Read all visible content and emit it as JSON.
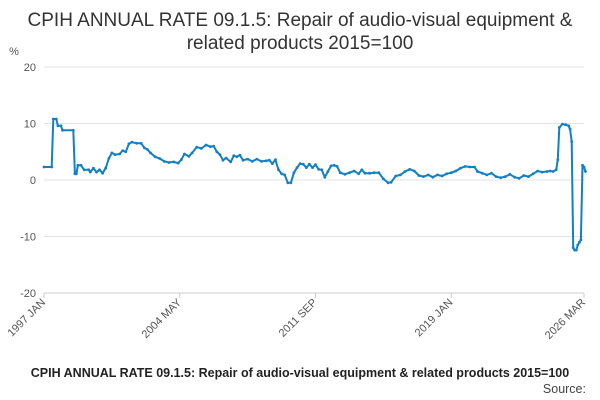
{
  "chart_data": {
    "type": "line",
    "title": "CPIH ANNUAL RATE 09.1.5: Repair of audio-visual equipment & related products 2015=100",
    "ylabel": "%",
    "xlabel": "",
    "ylim": [
      -20,
      20
    ],
    "yticks": [
      -20,
      -10,
      0,
      10,
      20
    ],
    "x_range": [
      "1997 JAN",
      "2026 MAR"
    ],
    "xticks": [
      "1997 JAN",
      "2004 MAY",
      "2011 SEP",
      "2019 JAN",
      "2026 MAR"
    ],
    "grid": true,
    "color": "#1380C4",
    "series": [
      {
        "name": "CPIH ANNUAL RATE 09.1.5",
        "points": [
          [
            "1997-01",
            2.3
          ],
          [
            "1997-06",
            2.3
          ],
          [
            "1997-07",
            10.8
          ],
          [
            "1997-09",
            10.8
          ],
          [
            "1997-10",
            9.6
          ],
          [
            "1997-12",
            9.6
          ],
          [
            "1998-01",
            8.8
          ],
          [
            "1998-08",
            8.8
          ],
          [
            "1998-09",
            1.1
          ],
          [
            "1998-10",
            1.1
          ],
          [
            "1998-11",
            2.6
          ],
          [
            "1999-01",
            2.6
          ],
          [
            "1999-03",
            1.8
          ],
          [
            "1999-06",
            1.8
          ],
          [
            "1999-07",
            1.4
          ],
          [
            "1999-09",
            2.1
          ],
          [
            "1999-11",
            1.4
          ],
          [
            "2000-01",
            1.8
          ],
          [
            "2000-03",
            1.2
          ],
          [
            "2000-05",
            2.1
          ],
          [
            "2000-07",
            3.8
          ],
          [
            "2000-09",
            4.8
          ],
          [
            "2000-11",
            4.5
          ],
          [
            "2001-02",
            4.6
          ],
          [
            "2001-04",
            5.2
          ],
          [
            "2001-06",
            5.0
          ],
          [
            "2001-08",
            6.4
          ],
          [
            "2001-10",
            6.7
          ],
          [
            "2002-01",
            6.5
          ],
          [
            "2002-04",
            6.5
          ],
          [
            "2002-06",
            5.7
          ],
          [
            "2002-08",
            5.4
          ],
          [
            "2002-10",
            4.8
          ],
          [
            "2003-01",
            4.1
          ],
          [
            "2003-04",
            3.8
          ],
          [
            "2003-07",
            3.3
          ],
          [
            "2003-10",
            3.1
          ],
          [
            "2004-01",
            3.2
          ],
          [
            "2004-04",
            3.0
          ],
          [
            "2004-06",
            3.6
          ],
          [
            "2004-08",
            4.6
          ],
          [
            "2004-11",
            4.2
          ],
          [
            "2005-01",
            4.8
          ],
          [
            "2005-04",
            5.8
          ],
          [
            "2005-07",
            5.6
          ],
          [
            "2005-10",
            6.2
          ],
          [
            "2006-01",
            5.9
          ],
          [
            "2006-03",
            6.0
          ],
          [
            "2006-05",
            5.0
          ],
          [
            "2006-07",
            4.5
          ],
          [
            "2006-09",
            3.5
          ],
          [
            "2006-11",
            3.9
          ],
          [
            "2007-02",
            3.2
          ],
          [
            "2007-04",
            4.3
          ],
          [
            "2007-06",
            4.1
          ],
          [
            "2007-08",
            4.4
          ],
          [
            "2007-10",
            3.5
          ],
          [
            "2008-01",
            3.7
          ],
          [
            "2008-04",
            3.3
          ],
          [
            "2008-07",
            3.7
          ],
          [
            "2008-10",
            3.3
          ],
          [
            "2009-01",
            3.4
          ],
          [
            "2009-03",
            3.5
          ],
          [
            "2009-05",
            2.9
          ],
          [
            "2009-07",
            3.6
          ],
          [
            "2009-09",
            1.8
          ],
          [
            "2009-11",
            1.1
          ],
          [
            "2010-01",
            0.9
          ],
          [
            "2010-03",
            -0.5
          ],
          [
            "2010-05",
            -0.5
          ],
          [
            "2010-07",
            1.3
          ],
          [
            "2010-09",
            2.2
          ],
          [
            "2010-11",
            2.9
          ],
          [
            "2011-01",
            2.8
          ],
          [
            "2011-03",
            2.2
          ],
          [
            "2011-05",
            2.8
          ],
          [
            "2011-07",
            2.2
          ],
          [
            "2011-09",
            2.7
          ],
          [
            "2011-11",
            1.9
          ],
          [
            "2012-01",
            1.8
          ],
          [
            "2012-03",
            0.5
          ],
          [
            "2012-05",
            1.5
          ],
          [
            "2012-07",
            2.5
          ],
          [
            "2012-09",
            2.6
          ],
          [
            "2012-11",
            2.4
          ],
          [
            "2013-01",
            1.3
          ],
          [
            "2013-04",
            1.0
          ],
          [
            "2013-07",
            1.3
          ],
          [
            "2013-10",
            1.6
          ],
          [
            "2014-01",
            1.1
          ],
          [
            "2014-03",
            1.8
          ],
          [
            "2014-05",
            1.2
          ],
          [
            "2014-08",
            1.2
          ],
          [
            "2014-11",
            1.3
          ],
          [
            "2015-02",
            1.3
          ],
          [
            "2015-05",
            0.2
          ],
          [
            "2015-08",
            -0.5
          ],
          [
            "2015-10",
            -0.4
          ],
          [
            "2016-01",
            0.7
          ],
          [
            "2016-04",
            0.9
          ],
          [
            "2016-07",
            1.5
          ],
          [
            "2016-10",
            1.9
          ],
          [
            "2017-01",
            1.6
          ],
          [
            "2017-04",
            0.8
          ],
          [
            "2017-07",
            0.6
          ],
          [
            "2017-10",
            0.9
          ],
          [
            "2018-01",
            0.5
          ],
          [
            "2018-04",
            0.9
          ],
          [
            "2018-07",
            0.7
          ],
          [
            "2018-10",
            1.1
          ],
          [
            "2019-01",
            1.3
          ],
          [
            "2019-04",
            1.6
          ],
          [
            "2019-07",
            2.1
          ],
          [
            "2019-10",
            2.4
          ],
          [
            "2020-01",
            2.3
          ],
          [
            "2020-04",
            2.3
          ],
          [
            "2020-06",
            1.5
          ],
          [
            "2020-09",
            1.2
          ],
          [
            "2020-12",
            0.9
          ],
          [
            "2021-03",
            1.2
          ],
          [
            "2021-06",
            0.6
          ],
          [
            "2021-09",
            0.4
          ],
          [
            "2021-12",
            0.6
          ],
          [
            "2022-03",
            1.0
          ],
          [
            "2022-06",
            0.5
          ],
          [
            "2022-09",
            0.3
          ],
          [
            "2022-12",
            0.8
          ],
          [
            "2023-03",
            0.6
          ],
          [
            "2023-06",
            1.1
          ],
          [
            "2023-09",
            1.6
          ],
          [
            "2023-12",
            1.4
          ],
          [
            "2024-03",
            1.5
          ],
          [
            "2024-05",
            1.6
          ],
          [
            "2024-07",
            1.5
          ],
          [
            "2024-09",
            1.8
          ],
          [
            "2024-10",
            3.6
          ],
          [
            "2024-11",
            9.3
          ],
          [
            "2025-01",
            9.9
          ],
          [
            "2025-03",
            9.8
          ],
          [
            "2025-05",
            9.6
          ],
          [
            "2025-06",
            9.0
          ],
          [
            "2025-07",
            6.8
          ],
          [
            "2025-08",
            -12.0
          ],
          [
            "2025-09",
            -12.4
          ],
          [
            "2025-10",
            -12.4
          ],
          [
            "2025-11",
            -11.5
          ],
          [
            "2025-12",
            -11.0
          ],
          [
            "2026-01",
            -10.6
          ],
          [
            "2026-02",
            2.6
          ],
          [
            "2026-03",
            2.3
          ],
          [
            "2026-04",
            1.5
          ]
        ]
      }
    ]
  },
  "caption": "CPIH ANNUAL RATE 09.1.5: Repair of audio-visual equipment & related products 2015=100",
  "source": "Source:"
}
